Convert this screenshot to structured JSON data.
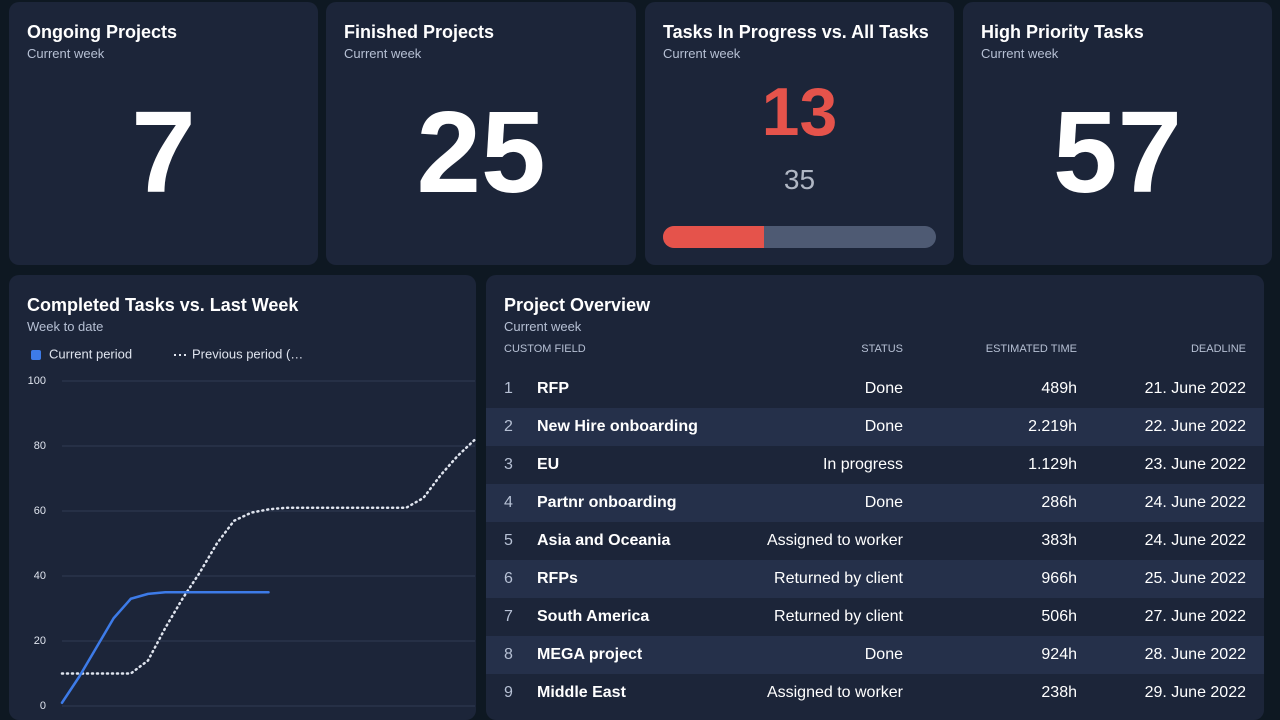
{
  "kpis": [
    {
      "title": "Ongoing Projects",
      "subtitle": "Current week",
      "value": 7
    },
    {
      "title": "Finished Projects",
      "subtitle": "Current week",
      "value": 25
    },
    {
      "title": "Tasks In Progress vs. All Tasks",
      "subtitle": "Current week",
      "value": 13,
      "total": 35
    },
    {
      "title": "High Priority Tasks",
      "subtitle": "Current week",
      "value": 57
    }
  ],
  "chart_data": {
    "type": "line",
    "title": "Completed Tasks vs. Last Week",
    "subtitle": "Week to date",
    "series": [
      {
        "name": "Current period",
        "color": "#3d7be8",
        "style": "solid",
        "values": [
          1,
          9,
          18,
          27,
          33,
          34.5,
          35,
          35,
          35,
          35,
          35,
          35,
          35
        ]
      },
      {
        "name": "Previous period (…",
        "color": "#dfe4ee",
        "style": "dotted",
        "values": [
          10,
          10,
          10,
          10,
          10,
          14,
          24,
          33,
          41,
          50,
          57,
          59.5,
          60.5,
          61,
          61,
          61,
          61,
          61,
          61,
          61,
          61,
          64,
          71,
          77,
          82
        ]
      }
    ],
    "ylim": [
      0,
      100
    ],
    "yticks": [
      0,
      20,
      40,
      60,
      80,
      100
    ],
    "grid": true
  },
  "table": {
    "title": "Project Overview",
    "subtitle": "Current week",
    "columns": [
      "CUSTOM FIELD",
      "STATUS",
      "ESTIMATED TIME",
      "DEADLINE"
    ],
    "rows": [
      {
        "n": 1,
        "name": "RFP",
        "status": "Done",
        "time": "489h",
        "deadline": "21. June 2022"
      },
      {
        "n": 2,
        "name": "New Hire onboarding",
        "status": "Done",
        "time": "2.219h",
        "deadline": "22. June 2022"
      },
      {
        "n": 3,
        "name": "EU",
        "status": "In progress",
        "time": "1.129h",
        "deadline": "23. June 2022"
      },
      {
        "n": 4,
        "name": "Partnr onboarding",
        "status": "Done",
        "time": "286h",
        "deadline": "24. June 2022"
      },
      {
        "n": 5,
        "name": "Asia and Oceania",
        "status": "Assigned to worker",
        "time": "383h",
        "deadline": "24. June 2022"
      },
      {
        "n": 6,
        "name": "RFPs",
        "status": "Returned by client",
        "time": "966h",
        "deadline": "25. June 2022"
      },
      {
        "n": 7,
        "name": "South America",
        "status": "Returned by client",
        "time": "506h",
        "deadline": "27. June 2022"
      },
      {
        "n": 8,
        "name": "MEGA project",
        "status": "Done",
        "time": "924h",
        "deadline": "28. June 2022"
      },
      {
        "n": 9,
        "name": "Middle East",
        "status": "Assigned to worker",
        "time": "238h",
        "deadline": "29. June 2022"
      }
    ]
  }
}
